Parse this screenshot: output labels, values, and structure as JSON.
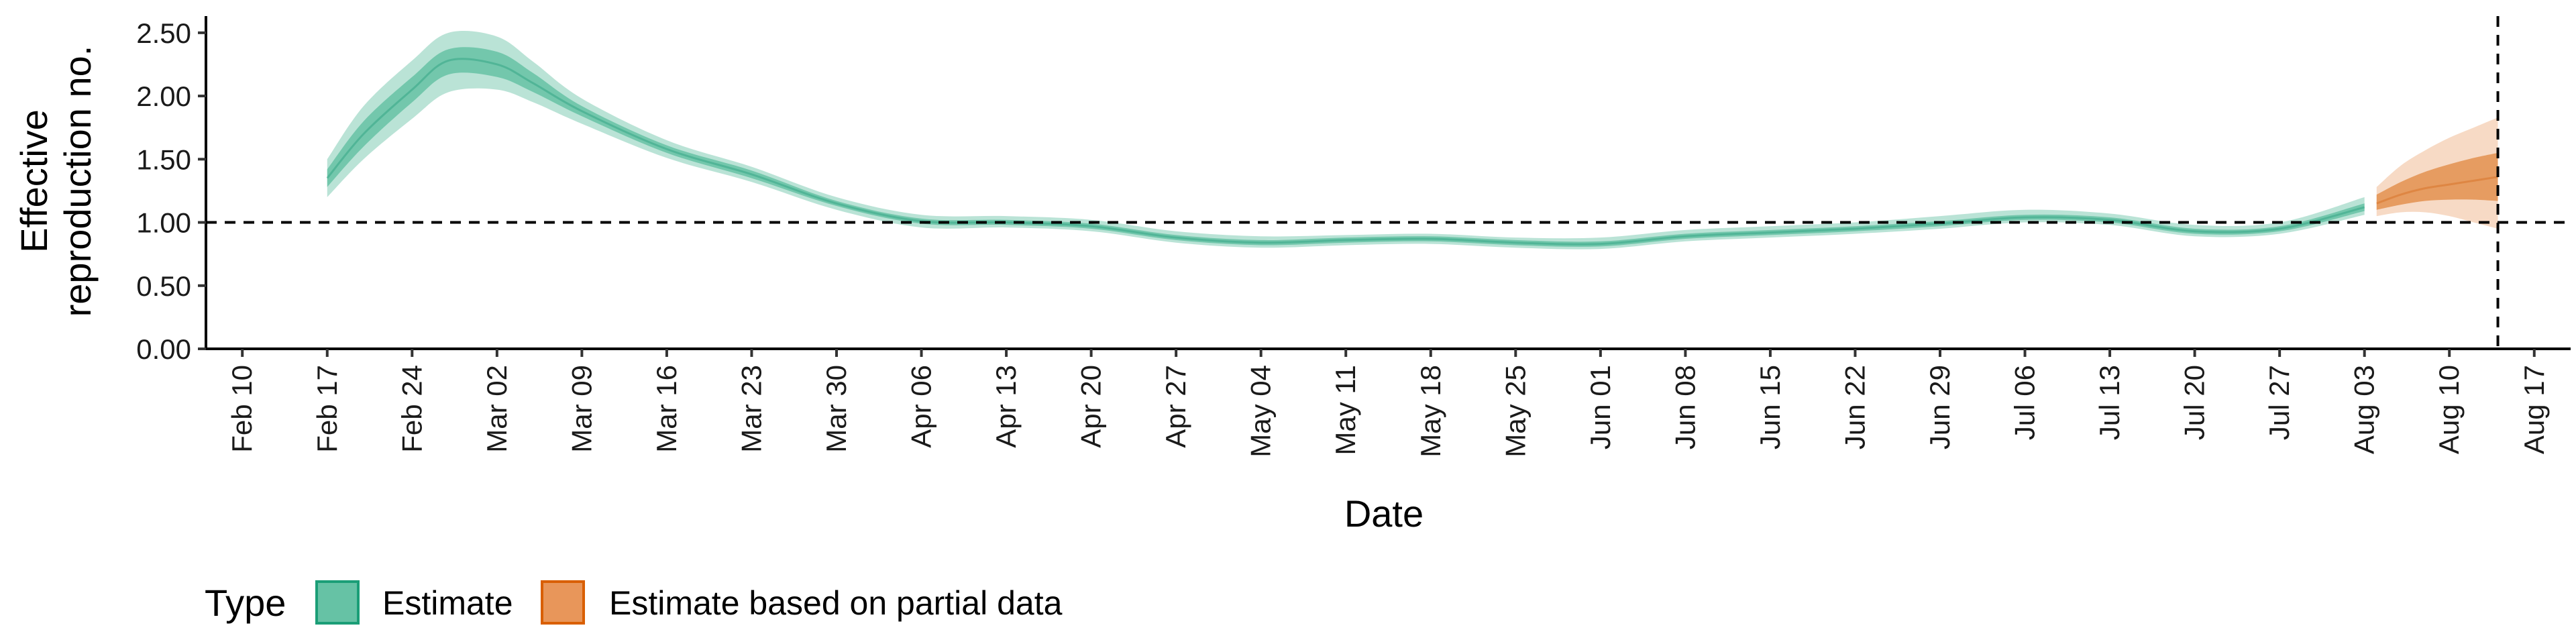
{
  "chart_data": {
    "type": "area",
    "xlabel": "Date",
    "ylabel_lines": [
      "Effective",
      "reproduction no."
    ],
    "x_ticks": [
      "Feb 10",
      "Feb 17",
      "Feb 24",
      "Mar 02",
      "Mar 09",
      "Mar 16",
      "Mar 23",
      "Mar 30",
      "Apr 06",
      "Apr 13",
      "Apr 20",
      "Apr 27",
      "May 04",
      "May 11",
      "May 18",
      "May 25",
      "Jun 01",
      "Jun 08",
      "Jun 15",
      "Jun 22",
      "Jun 29",
      "Jul 06",
      "Jul 13",
      "Jul 20",
      "Jul 27",
      "Aug 03",
      "Aug 10",
      "Aug 17"
    ],
    "y_ticks": [
      "0.00",
      "0.50",
      "1.00",
      "1.50",
      "2.00",
      "2.50"
    ],
    "ylim": [
      0,
      2.6
    ],
    "xlim": [
      "2020-02-07",
      "2020-08-20"
    ],
    "reference_hline": 1.0,
    "reference_vline": "2020-08-14",
    "legend": {
      "title": "Type",
      "items": [
        {
          "label": "Estimate",
          "fill": "#66c2a5",
          "border": "#1b9e77"
        },
        {
          "label": "Estimate based on partial data",
          "fill": "#e8965a",
          "border": "#d95f02"
        }
      ]
    },
    "series": [
      {
        "name": "Estimate",
        "color": "#1b9e77",
        "x": [
          "2020-02-17",
          "2020-02-20",
          "2020-02-24",
          "2020-02-27",
          "2020-03-02",
          "2020-03-05",
          "2020-03-09",
          "2020-03-16",
          "2020-03-23",
          "2020-03-30",
          "2020-04-06",
          "2020-04-13",
          "2020-04-20",
          "2020-04-27",
          "2020-05-04",
          "2020-05-11",
          "2020-05-18",
          "2020-05-25",
          "2020-06-01",
          "2020-06-08",
          "2020-06-15",
          "2020-06-22",
          "2020-06-29",
          "2020-07-06",
          "2020-07-13",
          "2020-07-20",
          "2020-07-27",
          "2020-08-03"
        ],
        "median": [
          1.35,
          1.7,
          2.05,
          2.28,
          2.25,
          2.1,
          1.88,
          1.58,
          1.38,
          1.15,
          1.01,
          1.0,
          0.97,
          0.88,
          0.84,
          0.86,
          0.87,
          0.84,
          0.83,
          0.89,
          0.92,
          0.95,
          0.99,
          1.04,
          1.02,
          0.93,
          0.95,
          1.12
        ],
        "lower_50": [
          1.28,
          1.6,
          1.95,
          2.17,
          2.15,
          2.03,
          1.84,
          1.55,
          1.35,
          1.13,
          0.99,
          0.98,
          0.95,
          0.86,
          0.82,
          0.84,
          0.85,
          0.82,
          0.81,
          0.87,
          0.9,
          0.93,
          0.97,
          1.02,
          1.0,
          0.91,
          0.93,
          1.09
        ],
        "upper_50": [
          1.42,
          1.8,
          2.15,
          2.37,
          2.35,
          2.18,
          1.92,
          1.61,
          1.41,
          1.17,
          1.03,
          1.02,
          0.99,
          0.9,
          0.86,
          0.88,
          0.89,
          0.86,
          0.85,
          0.91,
          0.94,
          0.97,
          1.01,
          1.06,
          1.04,
          0.95,
          0.97,
          1.15
        ],
        "lower_90": [
          1.2,
          1.5,
          1.82,
          2.03,
          2.05,
          1.95,
          1.78,
          1.51,
          1.32,
          1.1,
          0.96,
          0.96,
          0.93,
          0.84,
          0.8,
          0.82,
          0.83,
          0.8,
          0.79,
          0.85,
          0.88,
          0.91,
          0.95,
          1.0,
          0.98,
          0.89,
          0.91,
          1.06
        ],
        "upper_90": [
          1.5,
          1.92,
          2.28,
          2.5,
          2.47,
          2.27,
          1.98,
          1.65,
          1.44,
          1.2,
          1.06,
          1.05,
          1.02,
          0.93,
          0.89,
          0.9,
          0.91,
          0.88,
          0.88,
          0.94,
          0.97,
          1.0,
          1.05,
          1.1,
          1.07,
          0.98,
          1.0,
          1.2
        ]
      },
      {
        "name": "Estimate based on partial data",
        "color": "#d95f02",
        "x": [
          "2020-08-04",
          "2020-08-06",
          "2020-08-08",
          "2020-08-10",
          "2020-08-12",
          "2020-08-14"
        ],
        "median": [
          1.15,
          1.22,
          1.27,
          1.3,
          1.33,
          1.36
        ],
        "lower_50": [
          1.1,
          1.14,
          1.17,
          1.18,
          1.18,
          1.17
        ],
        "upper_50": [
          1.22,
          1.32,
          1.4,
          1.46,
          1.51,
          1.55
        ],
        "lower_90": [
          1.05,
          1.08,
          1.08,
          1.05,
          1.0,
          0.95
        ],
        "upper_90": [
          1.28,
          1.45,
          1.57,
          1.67,
          1.75,
          1.83
        ]
      }
    ]
  }
}
